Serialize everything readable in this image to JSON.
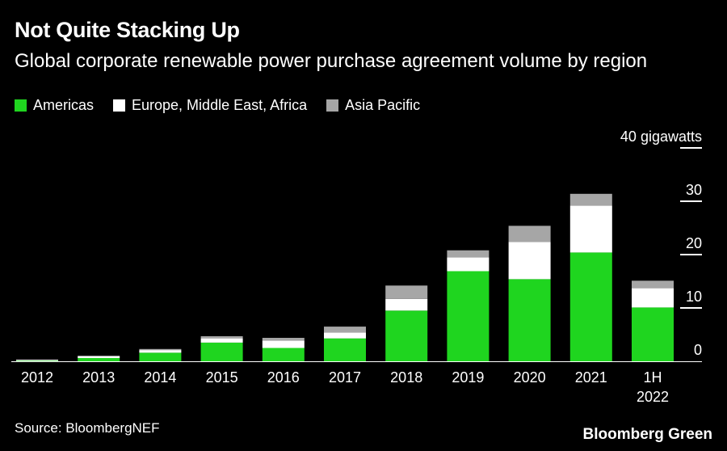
{
  "header": {
    "title": "Not Quite Stacking Up",
    "subtitle": "Global corporate renewable power purchase agreement volume by region"
  },
  "legend": [
    {
      "label": "Americas",
      "color": "#1fd51f"
    },
    {
      "label": "Europe, Middle East, Africa",
      "color": "#ffffff"
    },
    {
      "label": "Asia Pacific",
      "color": "#a6a6a6"
    }
  ],
  "chart_data": {
    "type": "bar",
    "stacked": true,
    "categories": [
      "2012",
      "2013",
      "2014",
      "2015",
      "2016",
      "2017",
      "2018",
      "2019",
      "2020",
      "2021",
      "1H\n2022"
    ],
    "series": [
      {
        "name": "Americas",
        "color": "#1fd51f",
        "values": [
          0.1,
          0.6,
          1.6,
          3.5,
          2.5,
          4.3,
          9.5,
          16.9,
          15.4,
          20.4,
          10.1
        ]
      },
      {
        "name": "Europe, Middle East, Africa",
        "color": "#ffffff",
        "values": [
          0.2,
          0.4,
          0.5,
          0.8,
          1.4,
          1.1,
          2.2,
          2.6,
          7.0,
          8.8,
          3.6
        ]
      },
      {
        "name": "Asia Pacific",
        "color": "#a6a6a6",
        "values": [
          0.0,
          0.0,
          0.2,
          0.4,
          0.5,
          1.1,
          2.5,
          1.3,
          3.0,
          2.2,
          1.4
        ]
      }
    ],
    "ylim": [
      0,
      40
    ],
    "y_ticks": [
      0,
      10,
      20,
      30,
      40
    ],
    "y_tick_labels": [
      "0",
      "10",
      "20",
      "30",
      "40 gigawatts"
    ],
    "y_axis_position": "right",
    "grid": false
  },
  "footer": {
    "source": "Source: BloombergNEF",
    "brand": "Bloomberg Green"
  }
}
